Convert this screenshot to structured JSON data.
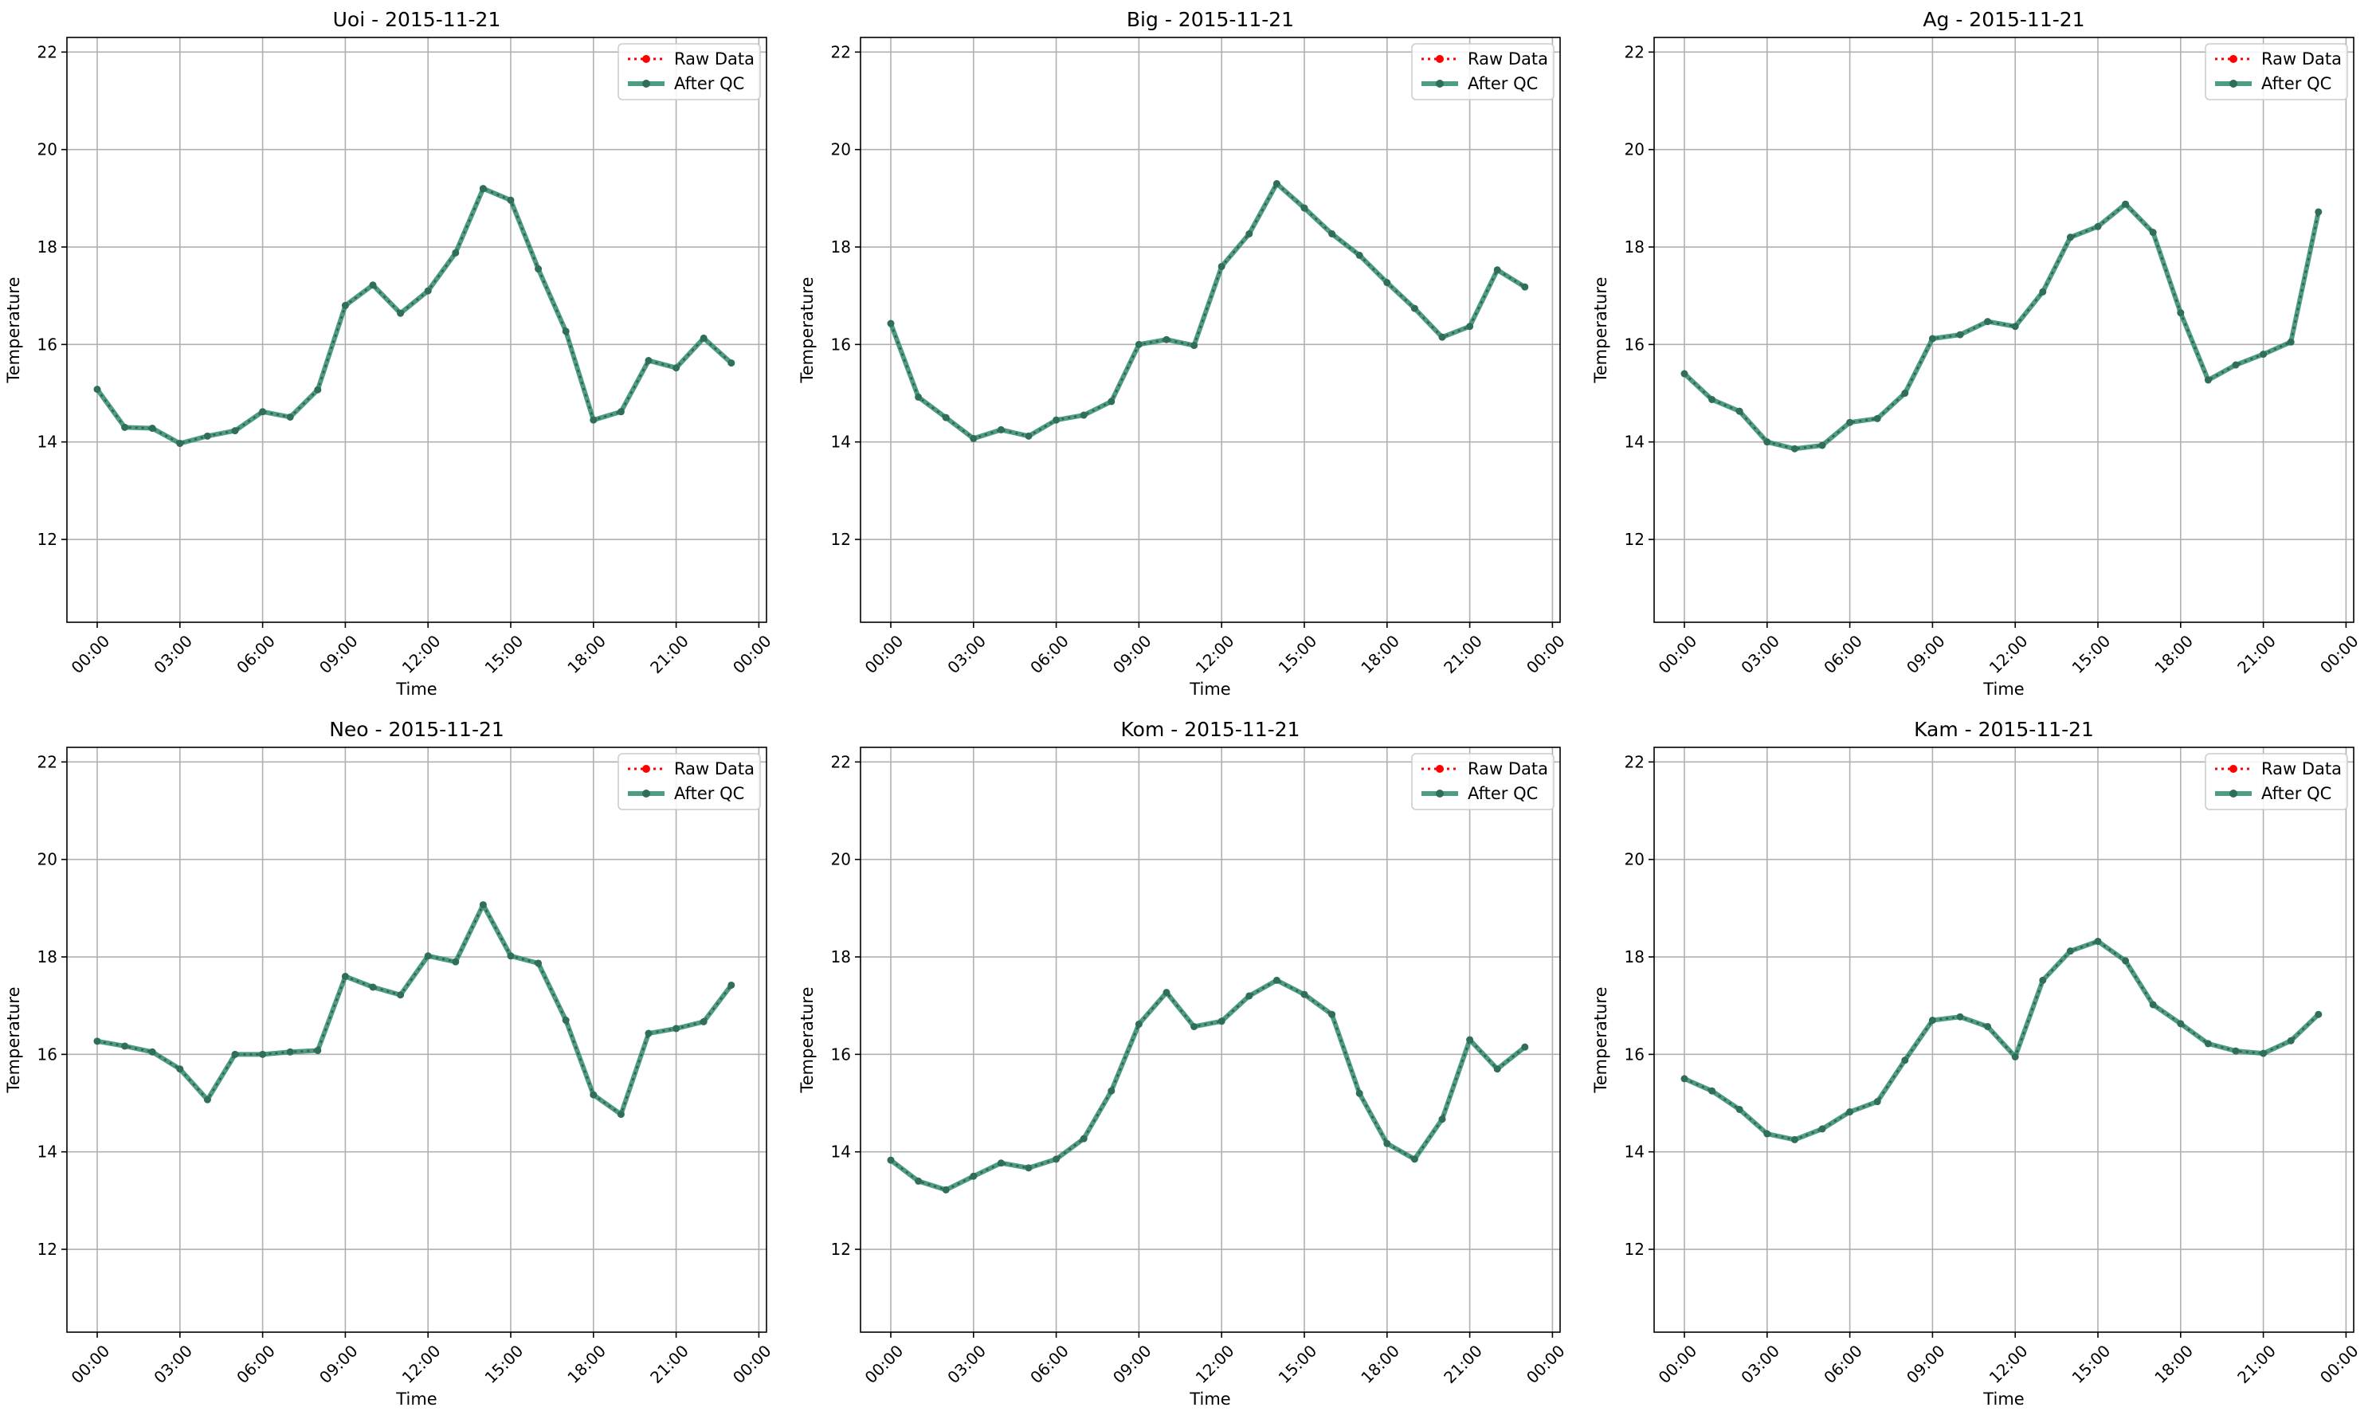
{
  "chart_data": [
    {
      "type": "line",
      "title": "Uoi - 2015-11-21",
      "xlabel": "Time",
      "ylabel": "Temperature",
      "ylim": [
        10.3,
        22.3
      ],
      "yticks": [
        12,
        14,
        16,
        18,
        20,
        22
      ],
      "xticks": [
        "00:00",
        "03:00",
        "06:00",
        "09:00",
        "12:00",
        "15:00",
        "18:00",
        "21:00",
        "00:00"
      ],
      "x": [
        "00:00",
        "01:00",
        "02:00",
        "03:00",
        "04:00",
        "05:00",
        "06:00",
        "07:00",
        "08:00",
        "09:00",
        "10:00",
        "11:00",
        "12:00",
        "13:00",
        "14:00",
        "15:00",
        "16:00",
        "17:00",
        "18:00",
        "19:00",
        "20:00",
        "21:00",
        "22:00",
        "23:00"
      ],
      "series": [
        {
          "name": "Raw Data",
          "values": [
            15.08,
            14.3,
            14.28,
            13.97,
            14.12,
            14.23,
            14.62,
            14.51,
            15.07,
            16.8,
            17.22,
            16.64,
            17.1,
            17.88,
            19.2,
            18.96,
            17.55,
            16.27,
            14.45,
            14.62,
            15.67,
            15.52,
            16.13,
            15.62
          ]
        },
        {
          "name": "After QC",
          "values": [
            15.08,
            14.3,
            14.28,
            13.97,
            14.12,
            14.23,
            14.62,
            14.51,
            15.07,
            16.8,
            17.22,
            16.64,
            17.1,
            17.88,
            19.2,
            18.96,
            17.55,
            16.27,
            14.45,
            14.62,
            15.67,
            15.52,
            16.13,
            15.62
          ]
        }
      ],
      "grid": true,
      "legend": "top-right"
    },
    {
      "type": "line",
      "title": "Big - 2015-11-21",
      "xlabel": "Time",
      "ylabel": "Temperature",
      "ylim": [
        10.3,
        22.3
      ],
      "yticks": [
        12,
        14,
        16,
        18,
        20,
        22
      ],
      "xticks": [
        "00:00",
        "03:00",
        "06:00",
        "09:00",
        "12:00",
        "15:00",
        "18:00",
        "21:00",
        "00:00"
      ],
      "x": [
        "00:00",
        "01:00",
        "02:00",
        "03:00",
        "04:00",
        "05:00",
        "06:00",
        "07:00",
        "08:00",
        "09:00",
        "10:00",
        "11:00",
        "12:00",
        "13:00",
        "14:00",
        "15:00",
        "16:00",
        "17:00",
        "18:00",
        "19:00",
        "20:00",
        "21:00",
        "22:00",
        "23:00"
      ],
      "series": [
        {
          "name": "Raw Data",
          "values": [
            16.43,
            14.92,
            14.5,
            14.07,
            14.25,
            14.12,
            14.45,
            14.55,
            14.83,
            16.0,
            16.1,
            15.98,
            17.6,
            18.27,
            19.3,
            18.8,
            18.27,
            17.83,
            17.27,
            16.74,
            16.15,
            16.37,
            17.53,
            17.18
          ]
        },
        {
          "name": "After QC",
          "values": [
            16.43,
            14.92,
            14.5,
            14.07,
            14.25,
            14.12,
            14.45,
            14.55,
            14.83,
            16.0,
            16.1,
            15.98,
            17.6,
            18.27,
            19.3,
            18.8,
            18.27,
            17.83,
            17.27,
            16.74,
            16.15,
            16.37,
            17.53,
            17.18
          ]
        }
      ],
      "grid": true,
      "legend": "top-right"
    },
    {
      "type": "line",
      "title": "Ag - 2015-11-21",
      "xlabel": "Time",
      "ylabel": "Temperature",
      "ylim": [
        10.3,
        22.3
      ],
      "yticks": [
        12,
        14,
        16,
        18,
        20,
        22
      ],
      "xticks": [
        "00:00",
        "03:00",
        "06:00",
        "09:00",
        "12:00",
        "15:00",
        "18:00",
        "21:00",
        "00:00"
      ],
      "x": [
        "00:00",
        "01:00",
        "02:00",
        "03:00",
        "04:00",
        "05:00",
        "06:00",
        "07:00",
        "08:00",
        "09:00",
        "10:00",
        "11:00",
        "12:00",
        "13:00",
        "14:00",
        "15:00",
        "16:00",
        "17:00",
        "18:00",
        "19:00",
        "20:00",
        "21:00",
        "22:00",
        "23:00"
      ],
      "series": [
        {
          "name": "Raw Data",
          "values": [
            15.4,
            14.87,
            14.63,
            14.0,
            13.86,
            13.93,
            14.4,
            14.48,
            15.0,
            16.12,
            16.2,
            16.47,
            16.37,
            17.08,
            18.2,
            18.42,
            18.88,
            18.3,
            16.65,
            15.27,
            15.58,
            15.8,
            16.05,
            18.72
          ]
        },
        {
          "name": "After QC",
          "values": [
            15.4,
            14.87,
            14.63,
            14.0,
            13.86,
            13.93,
            14.4,
            14.48,
            15.0,
            16.12,
            16.2,
            16.47,
            16.37,
            17.08,
            18.2,
            18.42,
            18.88,
            18.3,
            16.65,
            15.27,
            15.58,
            15.8,
            16.05,
            18.72
          ]
        }
      ],
      "grid": true,
      "legend": "top-right"
    },
    {
      "type": "line",
      "title": "Neo - 2015-11-21",
      "xlabel": "Time",
      "ylabel": "Temperature",
      "ylim": [
        10.3,
        22.3
      ],
      "yticks": [
        12,
        14,
        16,
        18,
        20,
        22
      ],
      "xticks": [
        "00:00",
        "03:00",
        "06:00",
        "09:00",
        "12:00",
        "15:00",
        "18:00",
        "21:00",
        "00:00"
      ],
      "x": [
        "00:00",
        "01:00",
        "02:00",
        "03:00",
        "04:00",
        "05:00",
        "06:00",
        "07:00",
        "08:00",
        "09:00",
        "10:00",
        "11:00",
        "12:00",
        "13:00",
        "14:00",
        "15:00",
        "16:00",
        "17:00",
        "18:00",
        "19:00",
        "20:00",
        "21:00",
        "22:00",
        "23:00"
      ],
      "series": [
        {
          "name": "Raw Data",
          "values": [
            16.27,
            16.17,
            16.05,
            15.7,
            15.07,
            16.0,
            16.0,
            16.05,
            16.08,
            17.6,
            17.38,
            17.22,
            18.02,
            17.9,
            19.07,
            18.02,
            17.87,
            16.7,
            15.17,
            14.77,
            16.43,
            16.53,
            16.67,
            17.42
          ]
        },
        {
          "name": "After QC",
          "values": [
            16.27,
            16.17,
            16.05,
            15.7,
            15.07,
            16.0,
            16.0,
            16.05,
            16.08,
            17.6,
            17.38,
            17.22,
            18.02,
            17.9,
            19.07,
            18.02,
            17.87,
            16.7,
            15.17,
            14.77,
            16.43,
            16.53,
            16.67,
            17.42
          ]
        }
      ],
      "grid": true,
      "legend": "top-right"
    },
    {
      "type": "line",
      "title": "Kom - 2015-11-21",
      "xlabel": "Time",
      "ylabel": "Temperature",
      "ylim": [
        10.3,
        22.3
      ],
      "yticks": [
        12,
        14,
        16,
        18,
        20,
        22
      ],
      "xticks": [
        "00:00",
        "03:00",
        "06:00",
        "09:00",
        "12:00",
        "15:00",
        "18:00",
        "21:00",
        "00:00"
      ],
      "x": [
        "00:00",
        "01:00",
        "02:00",
        "03:00",
        "04:00",
        "05:00",
        "06:00",
        "07:00",
        "08:00",
        "09:00",
        "10:00",
        "11:00",
        "12:00",
        "13:00",
        "14:00",
        "15:00",
        "16:00",
        "17:00",
        "18:00",
        "19:00",
        "20:00",
        "21:00",
        "22:00",
        "23:00"
      ],
      "series": [
        {
          "name": "Raw Data",
          "values": [
            13.83,
            13.4,
            13.22,
            13.5,
            13.77,
            13.67,
            13.85,
            14.27,
            15.25,
            16.62,
            17.27,
            16.57,
            16.68,
            17.2,
            17.52,
            17.23,
            16.82,
            15.2,
            14.17,
            13.85,
            14.67,
            16.3,
            15.7,
            16.15
          ]
        },
        {
          "name": "After QC",
          "values": [
            13.83,
            13.4,
            13.22,
            13.5,
            13.77,
            13.67,
            13.85,
            14.27,
            15.25,
            16.62,
            17.27,
            16.57,
            16.68,
            17.2,
            17.52,
            17.23,
            16.82,
            15.2,
            14.17,
            13.85,
            14.67,
            16.3,
            15.7,
            16.15
          ]
        }
      ],
      "grid": true,
      "legend": "top-right"
    },
    {
      "type": "line",
      "title": "Kam - 2015-11-21",
      "xlabel": "Time",
      "ylabel": "Temperature",
      "ylim": [
        10.3,
        22.3
      ],
      "yticks": [
        12,
        14,
        16,
        18,
        20,
        22
      ],
      "xticks": [
        "00:00",
        "03:00",
        "06:00",
        "09:00",
        "12:00",
        "15:00",
        "18:00",
        "21:00",
        "00:00"
      ],
      "x": [
        "00:00",
        "01:00",
        "02:00",
        "03:00",
        "04:00",
        "05:00",
        "06:00",
        "07:00",
        "08:00",
        "09:00",
        "10:00",
        "11:00",
        "12:00",
        "13:00",
        "14:00",
        "15:00",
        "16:00",
        "17:00",
        "18:00",
        "19:00",
        "20:00",
        "21:00",
        "22:00",
        "23:00"
      ],
      "series": [
        {
          "name": "Raw Data",
          "values": [
            15.5,
            15.25,
            14.87,
            14.37,
            14.25,
            14.47,
            14.82,
            15.03,
            15.88,
            16.7,
            16.77,
            16.57,
            15.95,
            17.52,
            18.12,
            18.32,
            17.92,
            17.02,
            16.63,
            16.22,
            16.07,
            16.02,
            16.28,
            16.82
          ]
        },
        {
          "name": "After QC",
          "values": [
            15.5,
            15.25,
            14.87,
            14.37,
            14.25,
            14.47,
            14.82,
            15.03,
            15.88,
            16.7,
            16.77,
            16.57,
            15.95,
            17.52,
            18.12,
            18.32,
            17.92,
            17.02,
            16.63,
            16.22,
            16.07,
            16.02,
            16.28,
            16.82
          ]
        }
      ],
      "grid": true,
      "legend": "top-right"
    }
  ],
  "colors": {
    "raw": "#ff0000",
    "after_qc": "#2e8b70",
    "marker": "#2f6e57",
    "grid": "#b0b0b0"
  }
}
